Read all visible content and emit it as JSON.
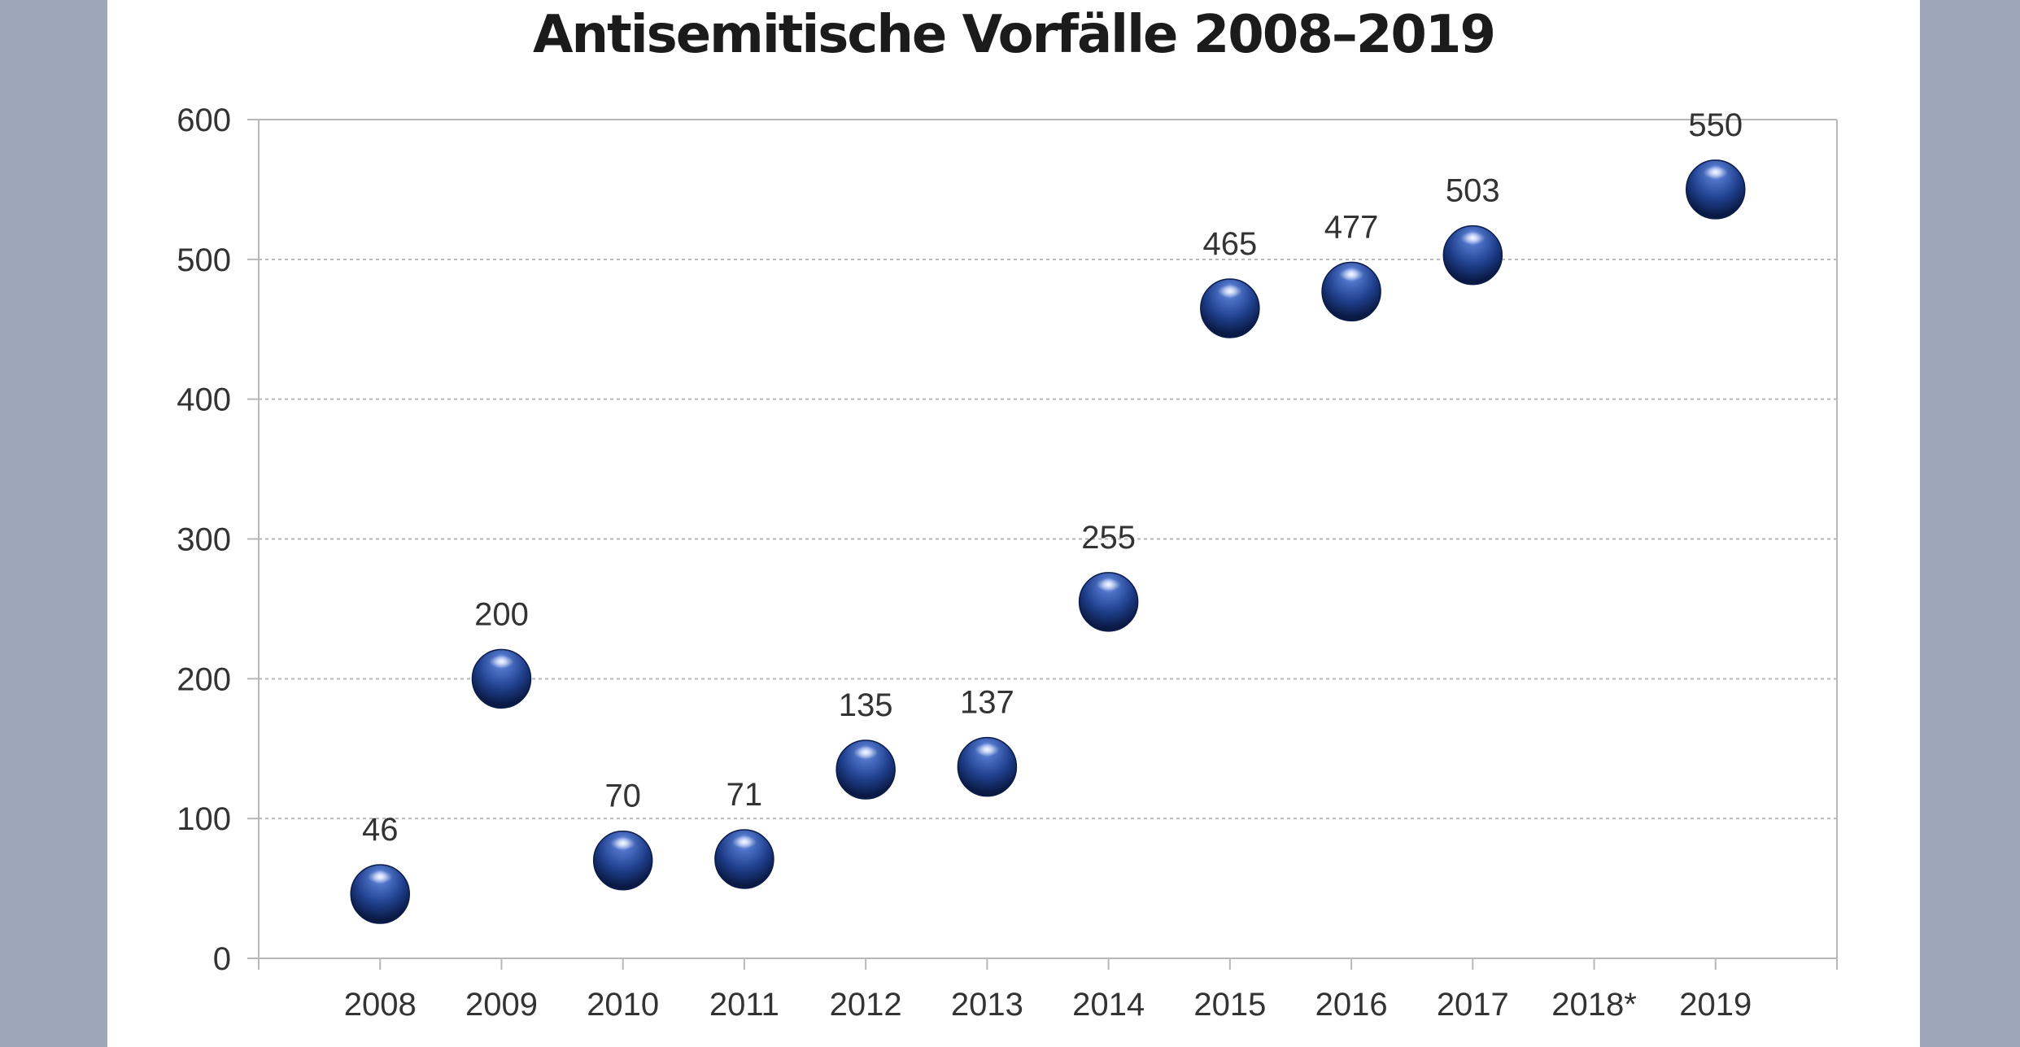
{
  "page": {
    "background": "#9ea7b9",
    "panel_background": "#ffffff"
  },
  "chart_data": {
    "type": "scatter",
    "title": "Antisemitische Vorfälle 2008–2019",
    "xlabel": "",
    "ylabel": "",
    "categories": [
      "2008",
      "2009",
      "2010",
      "2011",
      "2012",
      "2013",
      "2014",
      "2015",
      "2016",
      "2017",
      "2018*",
      "2019"
    ],
    "values": [
      46,
      200,
      70,
      71,
      135,
      137,
      255,
      465,
      477,
      503,
      null,
      550
    ],
    "data_labels": [
      "46",
      "200",
      "70",
      "71",
      "135",
      "137",
      "255",
      "465",
      "477",
      "503",
      "",
      "550"
    ],
    "ylim": [
      0,
      600
    ],
    "yticks": [
      "0",
      "100",
      "200",
      "300",
      "400",
      "500",
      "600"
    ],
    "grid": true,
    "grid_style": "dotted",
    "legend": "none",
    "marker": "sphere",
    "marker_color": "#1f3f8c"
  }
}
